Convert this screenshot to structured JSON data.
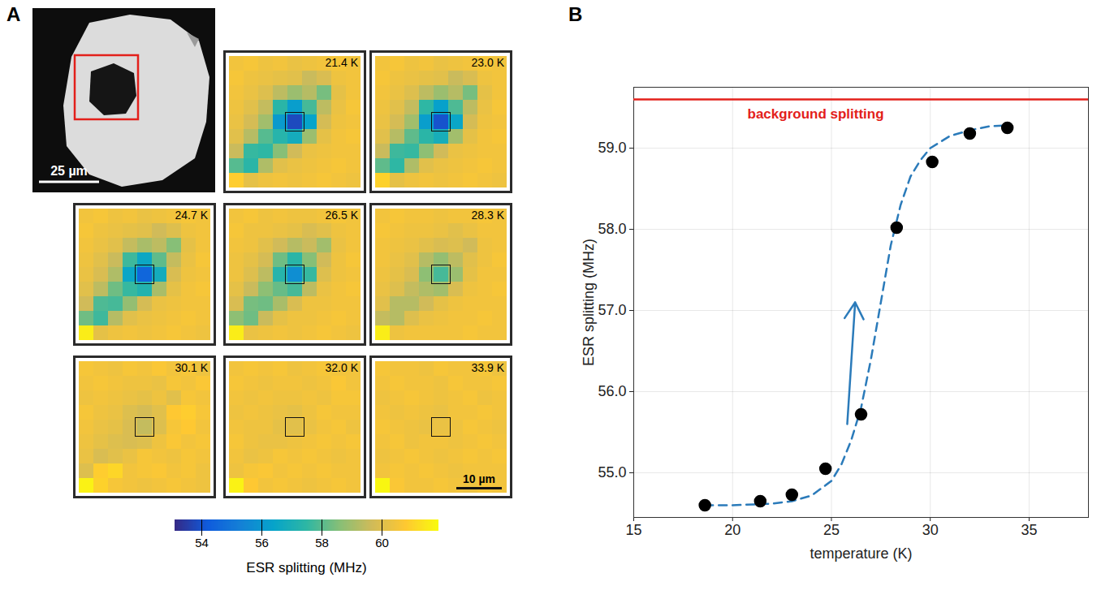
{
  "chart_data": [
    {
      "type": "heatmap",
      "panel": "A",
      "image_scale_bar": "25 µm",
      "scale_bar": "10 µm",
      "colorbar": {
        "label": "ESR splitting (MHz)",
        "range": [
          53.1,
          61.9
        ],
        "ticks": [
          54,
          56,
          58,
          60
        ]
      },
      "panels": [
        {
          "title": "21.4 K",
          "cells": [
            [
              60.5,
              60.6,
              60.4,
              60.5,
              60.3,
              60.4,
              60.5,
              60.6,
              60.5
            ],
            [
              60.6,
              60.4,
              60.3,
              60.2,
              60.1,
              59.6,
              59.9,
              60.4,
              60.5
            ],
            [
              60.5,
              60.3,
              60.0,
              59.4,
              58.9,
              59.3,
              58.4,
              60.2,
              60.5
            ],
            [
              60.4,
              60.1,
              59.5,
              57.4,
              56.2,
              57.8,
              59.4,
              60.3,
              60.6
            ],
            [
              60.3,
              59.8,
              59.0,
              56.1,
              53.8,
              56.4,
              59.8,
              60.4,
              60.5
            ],
            [
              60.1,
              59.3,
              58.0,
              57.3,
              56.8,
              58.9,
              60.2,
              60.5,
              60.6
            ],
            [
              59.6,
              57.6,
              57.5,
              58.6,
              59.7,
              60.3,
              60.4,
              60.5,
              60.5
            ],
            [
              58.0,
              57.4,
              59.2,
              60.1,
              60.3,
              60.4,
              60.5,
              60.6,
              60.5
            ],
            [
              60.9,
              60.2,
              60.4,
              60.5,
              60.4,
              60.5,
              60.6,
              60.5,
              60.4
            ]
          ]
        },
        {
          "title": "23.0 K",
          "cells": [
            [
              60.5,
              60.6,
              60.4,
              60.5,
              60.3,
              60.4,
              60.5,
              60.6,
              60.5
            ],
            [
              60.6,
              60.4,
              60.3,
              60.2,
              60.1,
              59.6,
              59.9,
              60.4,
              60.5
            ],
            [
              60.5,
              60.3,
              60.0,
              59.4,
              58.9,
              59.3,
              58.4,
              60.2,
              60.5
            ],
            [
              60.4,
              60.1,
              59.5,
              57.5,
              56.3,
              57.9,
              59.4,
              60.3,
              60.6
            ],
            [
              60.3,
              59.8,
              59.0,
              56.2,
              54.0,
              56.5,
              59.8,
              60.4,
              60.5
            ],
            [
              60.1,
              59.3,
              58.1,
              57.4,
              56.9,
              59.0,
              60.2,
              60.5,
              60.6
            ],
            [
              59.6,
              57.7,
              57.6,
              58.7,
              59.7,
              60.3,
              60.4,
              60.5,
              60.5
            ],
            [
              58.1,
              57.5,
              59.2,
              60.1,
              60.3,
              60.4,
              60.5,
              60.6,
              60.5
            ],
            [
              61.0,
              60.2,
              60.4,
              60.5,
              60.4,
              60.5,
              60.6,
              60.5,
              60.4
            ]
          ]
        },
        {
          "title": "24.7 K",
          "cells": [
            [
              60.5,
              60.6,
              60.4,
              60.5,
              60.3,
              60.4,
              60.5,
              60.6,
              60.5
            ],
            [
              60.6,
              60.4,
              60.3,
              60.2,
              60.1,
              59.7,
              60.0,
              60.4,
              60.5
            ],
            [
              60.5,
              60.3,
              60.1,
              59.5,
              59.1,
              59.4,
              58.6,
              60.2,
              60.5
            ],
            [
              60.4,
              60.1,
              59.6,
              57.7,
              56.6,
              58.1,
              59.5,
              60.3,
              60.6
            ],
            [
              60.3,
              59.9,
              59.2,
              56.5,
              54.5,
              56.8,
              59.9,
              60.4,
              60.5
            ],
            [
              60.1,
              59.4,
              58.3,
              57.6,
              57.2,
              59.1,
              60.2,
              60.5,
              60.6
            ],
            [
              59.7,
              57.9,
              57.8,
              58.8,
              59.8,
              60.3,
              60.4,
              60.5,
              60.5
            ],
            [
              58.3,
              57.7,
              59.3,
              60.1,
              60.3,
              60.4,
              60.5,
              60.6,
              60.5
            ],
            [
              61.6,
              60.2,
              60.4,
              60.5,
              60.4,
              60.5,
              60.6,
              60.5,
              60.4
            ]
          ]
        },
        {
          "title": "26.5 K",
          "cells": [
            [
              60.5,
              60.6,
              60.4,
              60.5,
              60.4,
              60.4,
              60.5,
              60.6,
              60.5
            ],
            [
              60.6,
              60.4,
              60.4,
              60.3,
              60.2,
              59.9,
              60.1,
              60.4,
              60.5
            ],
            [
              60.5,
              60.4,
              60.1,
              59.7,
              59.3,
              59.6,
              59.0,
              60.3,
              60.5
            ],
            [
              60.4,
              60.2,
              59.8,
              58.3,
              57.4,
              58.6,
              59.7,
              60.4,
              60.6
            ],
            [
              60.4,
              60.0,
              59.4,
              57.3,
              55.7,
              57.6,
              60.0,
              60.4,
              60.5
            ],
            [
              60.2,
              59.6,
              58.7,
              58.2,
              57.8,
              59.4,
              60.3,
              60.5,
              60.6
            ],
            [
              59.9,
              58.4,
              58.3,
              59.1,
              59.9,
              60.4,
              60.4,
              60.5,
              60.5
            ],
            [
              58.7,
              58.3,
              59.6,
              60.2,
              60.4,
              60.4,
              60.5,
              60.6,
              60.5
            ],
            [
              61.6,
              60.3,
              60.4,
              60.5,
              60.4,
              60.5,
              60.6,
              60.5,
              60.4
            ]
          ]
        },
        {
          "title": "28.3 K",
          "cells": [
            [
              60.5,
              60.6,
              60.5,
              60.5,
              60.4,
              60.5,
              60.5,
              60.6,
              60.5
            ],
            [
              60.6,
              60.5,
              60.4,
              60.4,
              60.3,
              60.1,
              60.3,
              60.5,
              60.5
            ],
            [
              60.5,
              60.4,
              60.3,
              60.1,
              59.9,
              60.0,
              59.7,
              60.4,
              60.5
            ],
            [
              60.5,
              60.3,
              60.1,
              59.3,
              58.8,
              59.4,
              60.1,
              60.4,
              60.6
            ],
            [
              60.4,
              60.2,
              59.9,
              58.7,
              57.8,
              58.9,
              60.2,
              60.5,
              60.5
            ],
            [
              60.3,
              60.0,
              59.5,
              59.2,
              59.0,
              59.9,
              60.4,
              60.5,
              60.6
            ],
            [
              60.1,
              59.3,
              59.3,
              59.7,
              60.2,
              60.4,
              60.5,
              60.5,
              60.5
            ],
            [
              59.5,
              59.3,
              60.0,
              60.3,
              60.4,
              60.5,
              60.5,
              60.6,
              60.5
            ],
            [
              61.6,
              60.4,
              60.5,
              60.5,
              60.5,
              60.5,
              60.6,
              60.5,
              60.5
            ]
          ]
        },
        {
          "title": "30.1 K",
          "cells": [
            [
              60.6,
              60.5,
              60.4,
              60.6,
              60.5,
              60.7,
              60.5,
              60.6,
              60.4
            ],
            [
              60.5,
              60.6,
              60.5,
              60.4,
              60.4,
              60.3,
              60.6,
              60.5,
              60.7
            ],
            [
              60.4,
              60.5,
              60.4,
              60.3,
              60.2,
              60.4,
              60.1,
              60.6,
              60.5
            ],
            [
              60.6,
              60.4,
              60.3,
              60.0,
              59.8,
              60.1,
              60.8,
              60.9,
              60.6
            ],
            [
              60.5,
              60.3,
              60.2,
              59.9,
              59.5,
              60.0,
              60.6,
              60.8,
              60.5
            ],
            [
              60.4,
              60.2,
              60.0,
              59.9,
              60.0,
              60.4,
              60.7,
              60.5,
              60.6
            ],
            [
              60.3,
              59.9,
              60.1,
              60.3,
              60.6,
              60.5,
              60.4,
              60.6,
              60.5
            ],
            [
              60.0,
              60.9,
              61.1,
              60.5,
              60.6,
              60.7,
              60.5,
              60.6,
              60.4
            ],
            [
              61.7,
              61.0,
              60.6,
              60.5,
              60.4,
              60.5,
              60.6,
              60.5,
              60.4
            ]
          ]
        },
        {
          "title": "32.0 K",
          "cells": [
            [
              60.5,
              60.6,
              60.5,
              60.6,
              60.4,
              60.5,
              60.6,
              60.5,
              60.5
            ],
            [
              60.6,
              60.5,
              60.4,
              60.5,
              60.5,
              60.4,
              60.5,
              60.7,
              60.5
            ],
            [
              60.5,
              60.4,
              60.5,
              60.4,
              60.4,
              60.5,
              60.4,
              60.6,
              60.6
            ],
            [
              60.4,
              60.5,
              60.4,
              60.3,
              60.2,
              60.4,
              60.6,
              60.5,
              60.5
            ],
            [
              60.5,
              60.4,
              60.4,
              60.2,
              60.1,
              60.3,
              60.5,
              60.6,
              60.4
            ],
            [
              60.6,
              60.4,
              60.3,
              60.3,
              60.4,
              60.5,
              60.6,
              60.5,
              60.6
            ],
            [
              60.5,
              60.3,
              60.4,
              60.6,
              60.5,
              60.6,
              60.5,
              60.4,
              60.5
            ],
            [
              60.4,
              60.6,
              60.7,
              60.5,
              60.6,
              60.5,
              60.6,
              60.5,
              60.5
            ],
            [
              61.7,
              60.8,
              60.5,
              60.6,
              60.5,
              60.4,
              60.5,
              60.6,
              60.5
            ]
          ]
        },
        {
          "title": "33.9 K",
          "cells": [
            [
              60.6,
              60.5,
              60.5,
              60.4,
              60.6,
              60.5,
              60.5,
              60.6,
              60.4
            ],
            [
              60.5,
              60.6,
              60.5,
              60.5,
              60.4,
              60.6,
              60.5,
              60.5,
              60.6
            ],
            [
              60.4,
              60.5,
              60.6,
              60.5,
              60.4,
              60.5,
              60.6,
              60.4,
              60.5
            ],
            [
              60.5,
              60.4,
              60.5,
              60.4,
              60.3,
              60.5,
              60.5,
              60.6,
              60.5
            ],
            [
              60.6,
              60.5,
              60.4,
              60.3,
              60.3,
              60.4,
              60.6,
              60.5,
              60.4
            ],
            [
              60.5,
              60.6,
              60.4,
              60.5,
              60.5,
              60.4,
              60.5,
              60.6,
              60.5
            ],
            [
              60.4,
              60.5,
              60.6,
              60.5,
              60.4,
              60.5,
              60.6,
              60.5,
              60.6
            ],
            [
              60.5,
              60.6,
              60.5,
              60.6,
              60.5,
              60.4,
              60.5,
              60.5,
              60.5
            ],
            [
              61.8,
              60.7,
              60.5,
              60.5,
              60.6,
              60.5,
              60.4,
              60.6,
              60.5
            ]
          ]
        }
      ]
    },
    {
      "type": "scatter",
      "panel": "B",
      "x_label": "temperature (K)",
      "y_label": "ESR splitting (MHz)",
      "x": [
        18.6,
        21.4,
        23.0,
        24.7,
        26.5,
        28.3,
        30.1,
        32.0,
        33.9
      ],
      "values": [
        54.6,
        54.65,
        54.73,
        55.05,
        55.72,
        58.02,
        58.83,
        59.18,
        59.25
      ],
      "color": "#000000",
      "marker": "circle",
      "fit": {
        "x": [
          18.6,
          20,
          22,
          23,
          24,
          25,
          25.5,
          26,
          26.5,
          27,
          27.5,
          28,
          28.5,
          29,
          29.5,
          30,
          31,
          32,
          33,
          33.9
        ],
        "values": [
          54.6,
          54.6,
          54.62,
          54.65,
          54.72,
          54.9,
          55.1,
          55.4,
          55.8,
          56.4,
          57.1,
          57.8,
          58.3,
          58.65,
          58.85,
          59.0,
          59.15,
          59.22,
          59.27,
          59.28
        ],
        "color": "#2b7bba",
        "line_style": "dashed"
      },
      "reference_line": {
        "label": "background splitting",
        "value": 59.6,
        "color": "#e3201b"
      },
      "arrow": {
        "x1": 25.8,
        "y1": 55.6,
        "x2": 26.2,
        "y2": 57.1,
        "color": "#2b7bba"
      },
      "xlim": [
        15,
        38
      ],
      "xticks": [
        15,
        20,
        25,
        30,
        35
      ],
      "ylim": [
        54.45,
        59.75
      ],
      "yticks": [
        55,
        56,
        57,
        58,
        59
      ],
      "grid": true
    }
  ]
}
